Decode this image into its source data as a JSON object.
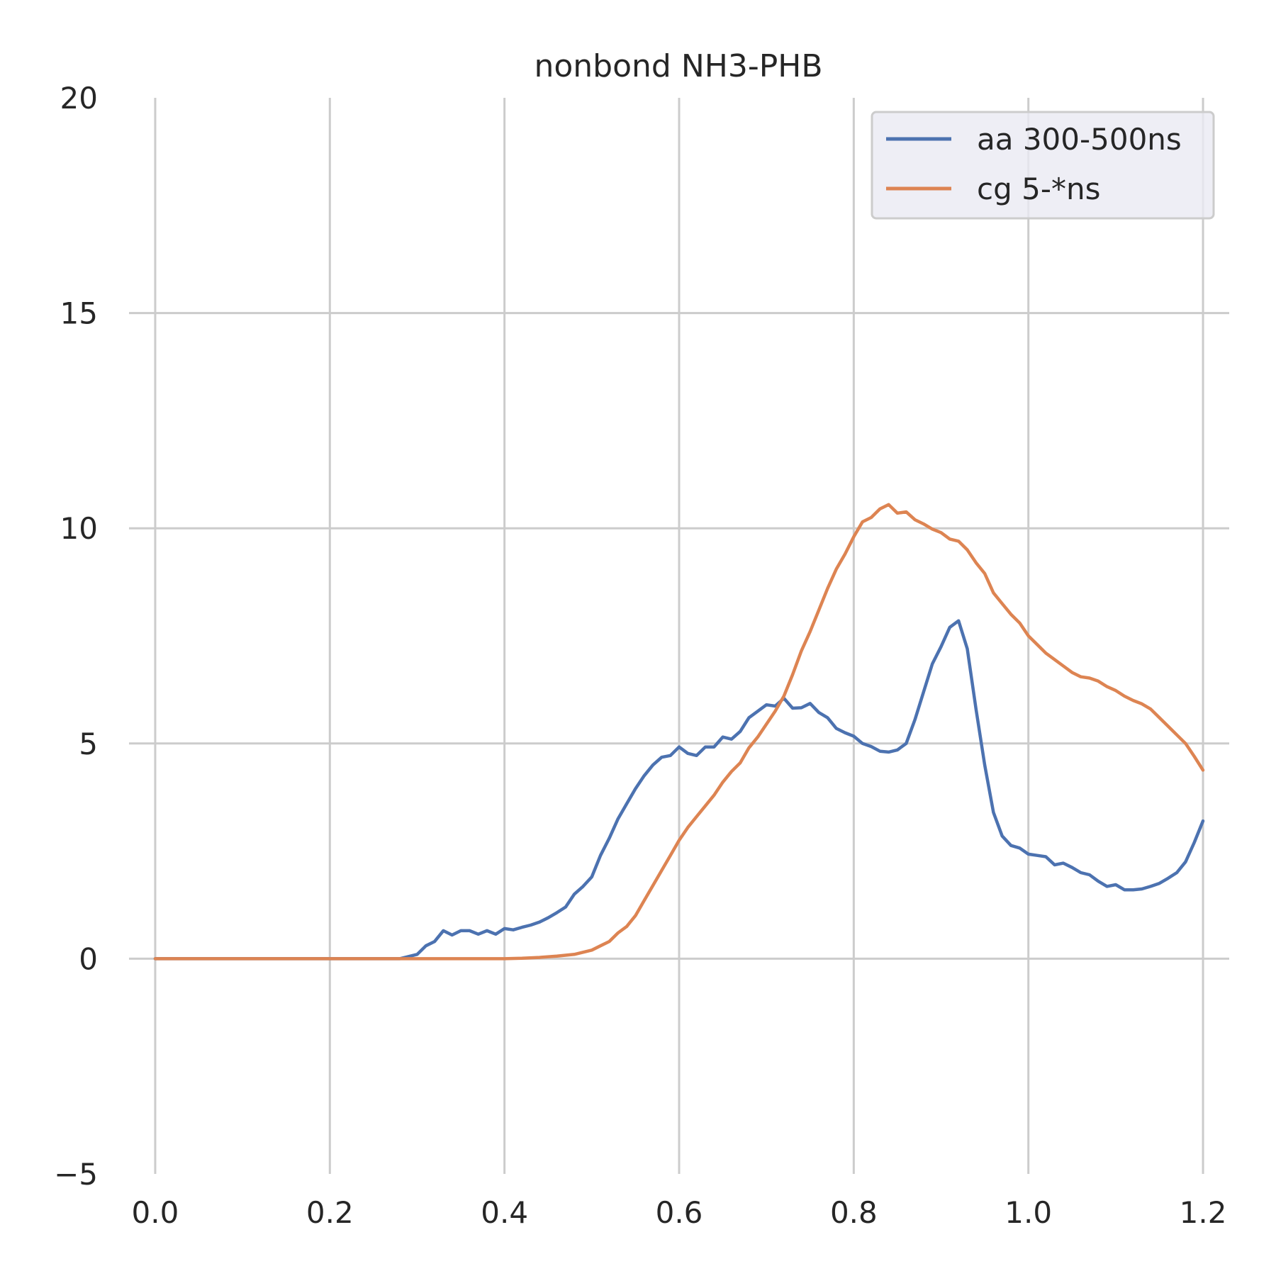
{
  "chart_data": {
    "type": "line",
    "title": "nonbond NH3-PHB",
    "xlabel": "",
    "ylabel": "",
    "xlim": [
      -0.03,
      1.23
    ],
    "ylim": [
      -5,
      20
    ],
    "xticks": [
      0.0,
      0.2,
      0.4,
      0.6,
      0.8,
      1.0,
      1.2
    ],
    "xtick_labels": [
      "0.0",
      "0.2",
      "0.4",
      "0.6",
      "0.8",
      "1.0",
      "1.2"
    ],
    "yticks": [
      -5,
      0,
      5,
      10,
      15,
      20
    ],
    "ytick_labels": [
      "−5",
      "0",
      "5",
      "10",
      "15",
      "20"
    ],
    "grid": true,
    "legend_position": "top-right",
    "series": [
      {
        "name": "aa 300-500ns",
        "color": "#4c72b0",
        "x": [
          0.0,
          0.1,
          0.2,
          0.28,
          0.3,
          0.31,
          0.32,
          0.33,
          0.34,
          0.35,
          0.36,
          0.37,
          0.38,
          0.39,
          0.4,
          0.41,
          0.42,
          0.43,
          0.44,
          0.45,
          0.46,
          0.47,
          0.48,
          0.49,
          0.5,
          0.51,
          0.52,
          0.53,
          0.54,
          0.55,
          0.56,
          0.57,
          0.58,
          0.59,
          0.6,
          0.61,
          0.62,
          0.63,
          0.64,
          0.65,
          0.66,
          0.67,
          0.68,
          0.69,
          0.7,
          0.71,
          0.72,
          0.73,
          0.74,
          0.75,
          0.76,
          0.77,
          0.78,
          0.79,
          0.8,
          0.81,
          0.82,
          0.83,
          0.84,
          0.85,
          0.86,
          0.87,
          0.88,
          0.89,
          0.9,
          0.91,
          0.92,
          0.93,
          0.94,
          0.95,
          0.96,
          0.97,
          0.98,
          0.99,
          1.0,
          1.01,
          1.02,
          1.03,
          1.04,
          1.05,
          1.06,
          1.07,
          1.08,
          1.09,
          1.1,
          1.11,
          1.12,
          1.13,
          1.14,
          1.15,
          1.16,
          1.17,
          1.18,
          1.19,
          1.2
        ],
        "y": [
          0.0,
          0.0,
          0.0,
          0.0,
          0.1,
          0.3,
          0.4,
          0.65,
          0.55,
          0.65,
          0.65,
          0.57,
          0.65,
          0.57,
          0.7,
          0.67,
          0.73,
          0.78,
          0.85,
          0.95,
          1.07,
          1.2,
          1.5,
          1.68,
          1.9,
          2.4,
          2.8,
          3.25,
          3.6,
          3.95,
          4.25,
          4.5,
          4.68,
          4.72,
          4.92,
          4.77,
          4.72,
          4.92,
          4.92,
          5.15,
          5.1,
          5.28,
          5.6,
          5.75,
          5.9,
          5.87,
          6.05,
          5.82,
          5.83,
          5.93,
          5.72,
          5.6,
          5.35,
          5.25,
          5.17,
          5.0,
          4.93,
          4.82,
          4.8,
          4.85,
          5.0,
          5.55,
          6.2,
          6.85,
          7.25,
          7.7,
          7.85,
          7.2,
          5.8,
          4.5,
          3.4,
          2.85,
          2.63,
          2.57,
          2.43,
          2.4,
          2.37,
          2.18,
          2.22,
          2.12,
          2.0,
          1.95,
          1.8,
          1.68,
          1.72,
          1.6,
          1.6,
          1.62,
          1.68,
          1.75,
          1.87,
          2.0,
          2.25,
          2.7,
          3.2
        ]
      },
      {
        "name": "cg 5-*ns",
        "color": "#dd8452",
        "x": [
          0.0,
          0.1,
          0.2,
          0.3,
          0.4,
          0.42,
          0.44,
          0.46,
          0.48,
          0.5,
          0.51,
          0.52,
          0.53,
          0.54,
          0.55,
          0.56,
          0.57,
          0.58,
          0.59,
          0.6,
          0.61,
          0.62,
          0.63,
          0.64,
          0.65,
          0.66,
          0.67,
          0.68,
          0.69,
          0.7,
          0.71,
          0.72,
          0.73,
          0.74,
          0.75,
          0.76,
          0.77,
          0.78,
          0.79,
          0.8,
          0.81,
          0.82,
          0.83,
          0.84,
          0.85,
          0.86,
          0.87,
          0.88,
          0.89,
          0.9,
          0.91,
          0.92,
          0.93,
          0.94,
          0.95,
          0.96,
          0.97,
          0.98,
          0.99,
          1.0,
          1.01,
          1.02,
          1.03,
          1.04,
          1.05,
          1.06,
          1.07,
          1.08,
          1.09,
          1.1,
          1.11,
          1.12,
          1.13,
          1.14,
          1.15,
          1.16,
          1.17,
          1.18,
          1.19,
          1.2
        ],
        "y": [
          0.0,
          0.0,
          0.0,
          0.0,
          0.0,
          0.01,
          0.03,
          0.06,
          0.1,
          0.2,
          0.3,
          0.4,
          0.6,
          0.75,
          1.0,
          1.35,
          1.7,
          2.05,
          2.4,
          2.75,
          3.05,
          3.3,
          3.55,
          3.8,
          4.1,
          4.35,
          4.55,
          4.9,
          5.15,
          5.45,
          5.75,
          6.1,
          6.6,
          7.15,
          7.6,
          8.1,
          8.6,
          9.05,
          9.4,
          9.8,
          10.15,
          10.25,
          10.45,
          10.55,
          10.35,
          10.38,
          10.2,
          10.1,
          9.98,
          9.9,
          9.75,
          9.7,
          9.5,
          9.2,
          8.95,
          8.5,
          8.25,
          8.0,
          7.8,
          7.5,
          7.3,
          7.1,
          6.95,
          6.8,
          6.65,
          6.55,
          6.52,
          6.45,
          6.32,
          6.23,
          6.1,
          6.0,
          5.92,
          5.8,
          5.6,
          5.4,
          5.2,
          5.0,
          4.7,
          4.38
        ]
      }
    ]
  }
}
